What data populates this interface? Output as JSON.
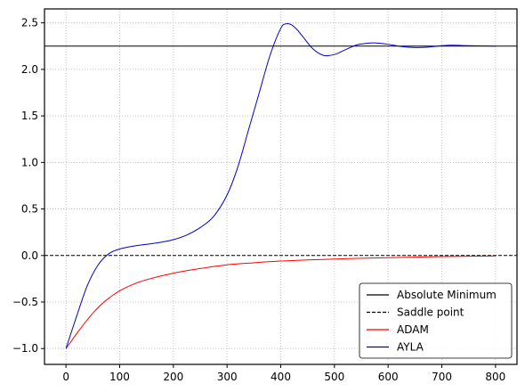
{
  "chart_data": {
    "type": "line",
    "title": "",
    "xlabel": "",
    "ylabel": "",
    "xlim": [
      -40,
      840
    ],
    "ylim": [
      -1.17,
      2.65
    ],
    "xticks": [
      0,
      100,
      200,
      300,
      400,
      500,
      600,
      700,
      800
    ],
    "yticks": [
      -1.0,
      -0.5,
      0.0,
      0.5,
      1.0,
      1.5,
      2.0,
      2.5
    ],
    "xtick_labels": [
      "0",
      "100",
      "200",
      "300",
      "400",
      "500",
      "600",
      "700",
      "800"
    ],
    "ytick_labels": [
      "−1.0",
      "−0.5",
      "0.0",
      "0.5",
      "1.0",
      "1.5",
      "2.0",
      "2.5"
    ],
    "grid": true,
    "legend_position": "bottom-right",
    "series": [
      {
        "name": "Absolute Minimum",
        "color": "#000000",
        "style": "solid",
        "x": [
          -40,
          840
        ],
        "y": [
          2.25,
          2.25
        ]
      },
      {
        "name": "Saddle point",
        "color": "#000000",
        "style": "dashed",
        "x": [
          -40,
          840
        ],
        "y": [
          0.0,
          0.0
        ]
      },
      {
        "name": "ADAM",
        "color": "#ff0000",
        "style": "solid",
        "x": [
          0,
          25,
          50,
          75,
          100,
          125,
          150,
          200,
          250,
          300,
          350,
          400,
          450,
          500,
          550,
          600,
          650,
          700,
          750,
          800
        ],
        "y": [
          -1.0,
          -0.8,
          -0.62,
          -0.48,
          -0.38,
          -0.31,
          -0.26,
          -0.19,
          -0.14,
          -0.1,
          -0.078,
          -0.06,
          -0.048,
          -0.038,
          -0.03,
          -0.023,
          -0.017,
          -0.012,
          -0.008,
          -0.005
        ]
      },
      {
        "name": "AYLA",
        "color": "#0000cc",
        "style": "solid",
        "x": [
          0,
          20,
          40,
          60,
          80,
          100,
          125,
          150,
          175,
          200,
          225,
          250,
          275,
          300,
          320,
          340,
          360,
          380,
          400,
          410,
          420,
          430,
          440,
          460,
          480,
          500,
          520,
          540,
          560,
          575,
          600,
          625,
          650,
          675,
          700,
          720,
          750,
          800
        ],
        "y": [
          -1.0,
          -0.65,
          -0.32,
          -0.1,
          0.02,
          0.07,
          0.1,
          0.12,
          0.14,
          0.17,
          0.22,
          0.3,
          0.42,
          0.65,
          0.95,
          1.35,
          1.75,
          2.15,
          2.44,
          2.49,
          2.48,
          2.43,
          2.36,
          2.22,
          2.15,
          2.16,
          2.21,
          2.26,
          2.28,
          2.285,
          2.27,
          2.245,
          2.235,
          2.24,
          2.255,
          2.26,
          2.255,
          2.25
        ]
      }
    ]
  }
}
